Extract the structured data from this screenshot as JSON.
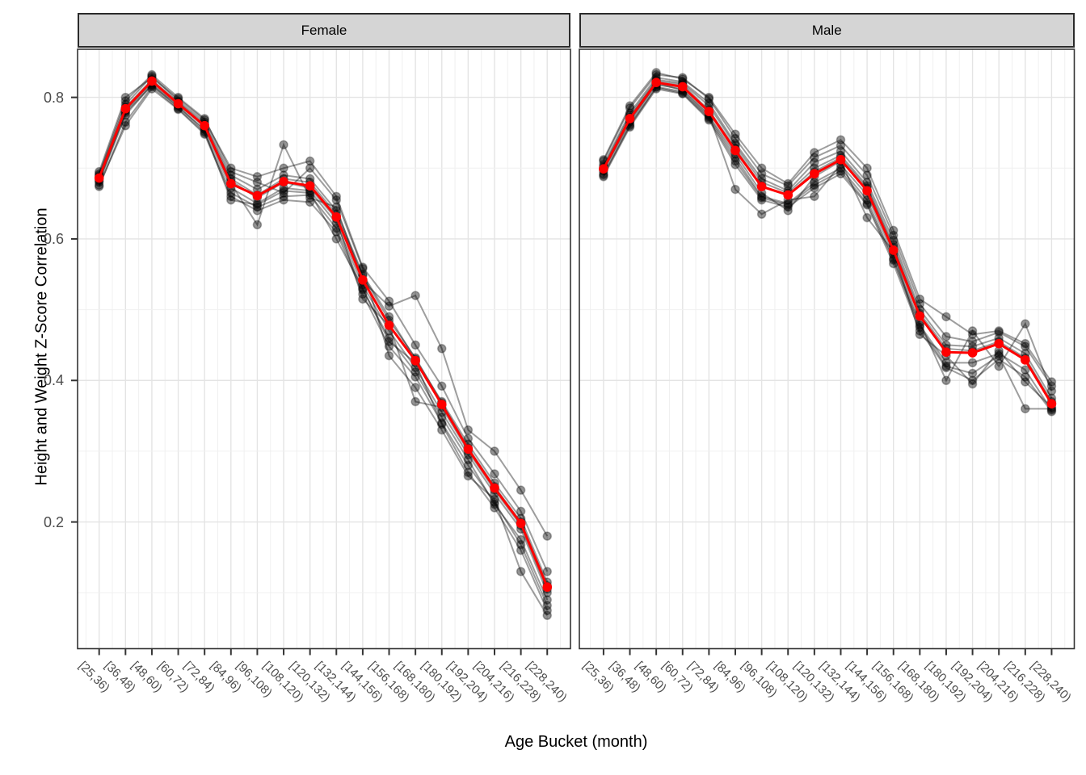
{
  "figure": {
    "y_axis_title": "Height and Weight Z-Score Correlation",
    "x_axis_title": "Age Bucket (month)"
  },
  "chart_data": {
    "type": "line",
    "title": "",
    "xlabel": "Age Bucket (month)",
    "ylabel": "Height and Weight Z-Score Correlation",
    "categories": [
      "[25,36)",
      "[36,48)",
      "[48,60)",
      "[60,72)",
      "[72,84)",
      "[84,96)",
      "[96,108)",
      "[108,120)",
      "[120,132)",
      "[132,144)",
      "[144,156)",
      "[156,168)",
      "[168,180)",
      "[180,192)",
      "[192,204)",
      "[204,216)",
      "[216,228)",
      "[228,240)"
    ],
    "ytick_labels": [
      "0.2",
      "0.4",
      "0.6",
      "0.8"
    ],
    "yticks": [
      0.2,
      0.4,
      0.6,
      0.8
    ],
    "yticks_minor": [
      0.1,
      0.3,
      0.5,
      0.7
    ],
    "ylim": [
      0.021,
      0.868
    ],
    "grid": true,
    "legend": "none",
    "colors": {
      "mean": "#FF0000",
      "individual": "#000000",
      "individual_line_alpha": 0.38,
      "individual_point_alpha": 0.42,
      "grid_major": "#E4E4E4",
      "grid_minor": "#F0F0F0",
      "panel_border": "#333333",
      "strip_fill": "#D5D5D5",
      "axis_text": "#4D4D4D",
      "tick": "#333333"
    },
    "facets": [
      {
        "label": "Female",
        "mean_series": [
          0.686,
          0.784,
          0.823,
          0.791,
          0.76,
          0.678,
          0.661,
          0.681,
          0.675,
          0.631,
          0.542,
          0.478,
          0.428,
          0.366,
          0.303,
          0.248,
          0.198,
          0.108
        ],
        "individual_series": [
          [
            0.69,
            0.79,
            0.83,
            0.795,
            0.765,
            0.69,
            0.67,
            0.69,
            0.685,
            0.64,
            0.55,
            0.49,
            0.43,
            0.37,
            0.31,
            0.255,
            0.205,
            0.115
          ],
          [
            0.68,
            0.775,
            0.818,
            0.786,
            0.755,
            0.672,
            0.65,
            0.672,
            0.668,
            0.622,
            0.535,
            0.47,
            0.418,
            0.355,
            0.295,
            0.24,
            0.19,
            0.1
          ],
          [
            0.695,
            0.8,
            0.828,
            0.798,
            0.768,
            0.7,
            0.688,
            0.7,
            0.71,
            0.66,
            0.56,
            0.512,
            0.45,
            0.392,
            0.318,
            0.268,
            0.215,
            0.13
          ],
          [
            0.676,
            0.76,
            0.812,
            0.783,
            0.748,
            0.66,
            0.64,
            0.655,
            0.652,
            0.61,
            0.522,
            0.448,
            0.405,
            0.34,
            0.28,
            0.228,
            0.168,
            0.082
          ],
          [
            0.688,
            0.786,
            0.825,
            0.793,
            0.762,
            0.685,
            0.662,
            0.685,
            0.68,
            0.635,
            0.548,
            0.485,
            0.432,
            0.368,
            0.305,
            0.25,
            0.2,
            0.11
          ],
          [
            0.684,
            0.78,
            0.82,
            0.79,
            0.758,
            0.678,
            0.62,
            0.733,
            0.658,
            0.645,
            0.54,
            0.505,
            0.52,
            0.445,
            0.33,
            0.3,
            0.245,
            0.18
          ],
          [
            0.692,
            0.795,
            0.832,
            0.8,
            0.77,
            0.695,
            0.68,
            0.665,
            0.7,
            0.655,
            0.558,
            0.435,
            0.39,
            0.33,
            0.265,
            0.232,
            0.13,
            0.068
          ],
          [
            0.674,
            0.765,
            0.815,
            0.784,
            0.75,
            0.665,
            0.645,
            0.66,
            0.662,
            0.615,
            0.528,
            0.46,
            0.412,
            0.348,
            0.288,
            0.225,
            0.175,
            0.09
          ],
          [
            0.686,
            0.782,
            0.822,
            0.792,
            0.76,
            0.682,
            0.658,
            0.68,
            0.672,
            0.628,
            0.515,
            0.478,
            0.37,
            0.362,
            0.3,
            0.245,
            0.195,
            0.105
          ],
          [
            0.682,
            0.778,
            0.817,
            0.788,
            0.752,
            0.655,
            0.648,
            0.668,
            0.665,
            0.6,
            0.53,
            0.455,
            0.425,
            0.338,
            0.27,
            0.22,
            0.16,
            0.075
          ]
        ]
      },
      {
        "label": "Male",
        "mean_series": [
          0.699,
          0.77,
          0.821,
          0.815,
          0.78,
          0.725,
          0.674,
          0.662,
          0.692,
          0.712,
          0.668,
          0.584,
          0.491,
          0.44,
          0.439,
          0.452,
          0.429,
          0.367
        ],
        "individual_series": [
          [
            0.7,
            0.772,
            0.823,
            0.818,
            0.782,
            0.728,
            0.675,
            0.662,
            0.695,
            0.715,
            0.672,
            0.588,
            0.492,
            0.44,
            0.44,
            0.452,
            0.43,
            0.368
          ],
          [
            0.692,
            0.762,
            0.815,
            0.808,
            0.772,
            0.715,
            0.66,
            0.65,
            0.68,
            0.7,
            0.655,
            0.572,
            0.478,
            0.425,
            0.425,
            0.438,
            0.415,
            0.358
          ],
          [
            0.71,
            0.785,
            0.832,
            0.828,
            0.798,
            0.742,
            0.692,
            0.675,
            0.715,
            0.732,
            0.69,
            0.605,
            0.508,
            0.462,
            0.455,
            0.468,
            0.448,
            0.392
          ],
          [
            0.688,
            0.758,
            0.812,
            0.805,
            0.768,
            0.705,
            0.655,
            0.645,
            0.672,
            0.692,
            0.648,
            0.565,
            0.47,
            0.418,
            0.4,
            0.43,
            0.405,
            0.356
          ],
          [
            0.702,
            0.775,
            0.825,
            0.82,
            0.788,
            0.732,
            0.68,
            0.665,
            0.7,
            0.718,
            0.675,
            0.592,
            0.495,
            0.445,
            0.442,
            0.455,
            0.432,
            0.37
          ],
          [
            0.696,
            0.768,
            0.818,
            0.812,
            0.776,
            0.67,
            0.635,
            0.655,
            0.66,
            0.705,
            0.662,
            0.578,
            0.482,
            0.4,
            0.47,
            0.42,
            0.48,
            0.385
          ],
          [
            0.712,
            0.788,
            0.835,
            0.826,
            0.8,
            0.748,
            0.7,
            0.678,
            0.722,
            0.74,
            0.7,
            0.612,
            0.515,
            0.49,
            0.465,
            0.47,
            0.452,
            0.398
          ],
          [
            0.69,
            0.76,
            0.814,
            0.806,
            0.77,
            0.71,
            0.658,
            0.648,
            0.676,
            0.696,
            0.65,
            0.57,
            0.475,
            0.42,
            0.41,
            0.435,
            0.36,
            0.36
          ],
          [
            0.705,
            0.778,
            0.828,
            0.822,
            0.792,
            0.735,
            0.685,
            0.668,
            0.708,
            0.724,
            0.68,
            0.598,
            0.5,
            0.45,
            0.448,
            0.46,
            0.438,
            0.375
          ],
          [
            0.698,
            0.765,
            0.82,
            0.81,
            0.774,
            0.72,
            0.665,
            0.64,
            0.688,
            0.71,
            0.63,
            0.582,
            0.465,
            0.435,
            0.395,
            0.442,
            0.398,
            0.362
          ]
        ]
      }
    ]
  }
}
